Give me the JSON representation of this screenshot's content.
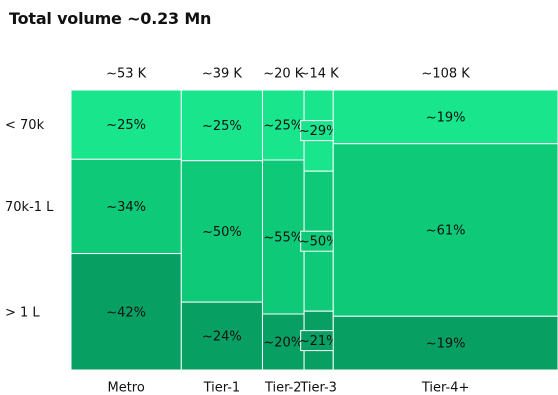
{
  "chart_data": {
    "type": "mekko",
    "title": "Total volume ~0.23 Mn",
    "categories": [
      "Metro",
      "Tier-1",
      "Tier-2",
      "Tier-3",
      "Tier-4+"
    ],
    "category_totals": [
      53,
      39,
      20,
      14,
      108
    ],
    "category_total_labels": [
      "~53 K",
      "~39 K",
      "~20 K",
      "~14 K",
      "~108 K"
    ],
    "row_labels": [
      "< 70k",
      "70k-1 L",
      "> 1 L"
    ],
    "series": [
      {
        "name": "< 70k",
        "values": [
          25,
          25,
          25,
          29,
          19
        ],
        "labels": [
          "~25%",
          "~25%",
          "~25%",
          "~29%",
          "~19%"
        ]
      },
      {
        "name": "70k-1 L",
        "values": [
          34,
          50,
          55,
          50,
          61
        ],
        "labels": [
          "~34%",
          "~50%",
          "~55%",
          "~50%",
          "~61%"
        ]
      },
      {
        "name": "> 1 L",
        "values": [
          42,
          24,
          20,
          21,
          19
        ],
        "labels": [
          "~42%",
          "~24%",
          "~20%",
          "~21%",
          "~19%"
        ]
      }
    ],
    "colors": [
      "#19E68C",
      "#0DC978",
      "#07A062"
    ],
    "ylim": [
      0,
      100
    ],
    "grid": false,
    "legend": "none"
  }
}
